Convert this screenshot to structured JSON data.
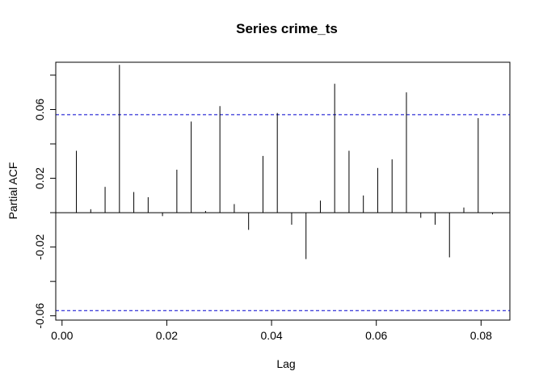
{
  "chart_data": {
    "type": "bar",
    "title": "Series  crime_ts",
    "xlabel": "Lag",
    "ylabel": "Partial ACF",
    "xlim": [
      -0.0012,
      0.0855
    ],
    "ylim": [
      -0.0625,
      0.0875
    ],
    "x_ticks": [
      0.0,
      0.02,
      0.04,
      0.06,
      0.08
    ],
    "x_tick_labels": [
      "0.00",
      "0.02",
      "0.04",
      "0.06",
      "0.08"
    ],
    "y_ticks": [
      -0.06,
      -0.02,
      0.02,
      0.06
    ],
    "y_tick_labels": [
      "-0.06",
      "-0.02",
      "0.02",
      "0.06"
    ],
    "confidence_bound": 0.057,
    "confidence_color": "#0000cd",
    "bar_color": "#000000",
    "grid": false,
    "x": [
      0.00274,
      0.00548,
      0.00822,
      0.01096,
      0.0137,
      0.01644,
      0.01918,
      0.02192,
      0.02466,
      0.0274,
      0.03014,
      0.03288,
      0.03562,
      0.03836,
      0.0411,
      0.04384,
      0.04658,
      0.04932,
      0.05205,
      0.05479,
      0.05753,
      0.06027,
      0.06301,
      0.06575,
      0.06849,
      0.07123,
      0.07397,
      0.07671,
      0.07945,
      0.08219
    ],
    "values": [
      0.036,
      0.002,
      0.015,
      0.086,
      0.012,
      0.009,
      -0.002,
      0.025,
      0.053,
      0.001,
      0.062,
      0.005,
      -0.01,
      0.033,
      0.058,
      -0.007,
      -0.027,
      0.007,
      0.075,
      0.036,
      0.01,
      0.026,
      0.031,
      0.07,
      -0.003,
      -0.007,
      -0.026,
      0.003,
      0.055,
      -0.001
    ]
  }
}
